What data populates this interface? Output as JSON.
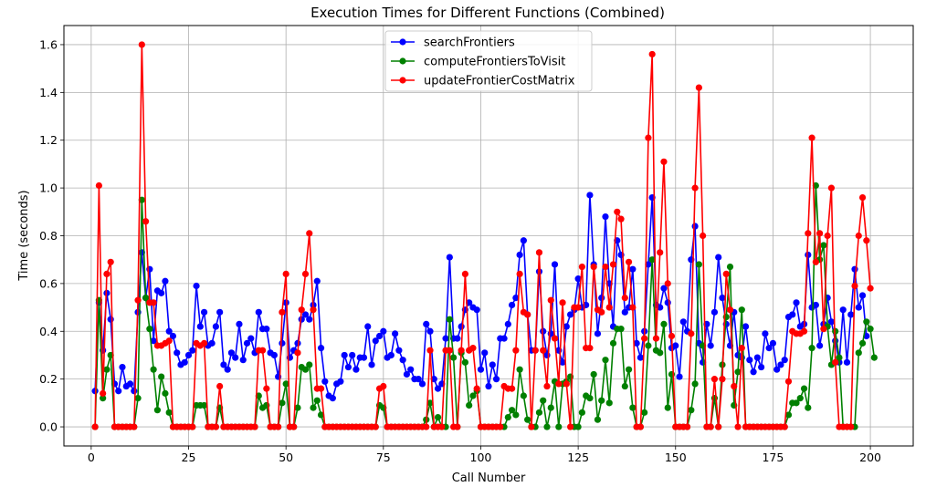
{
  "chart_data": {
    "type": "line",
    "title": "Execution Times for Different Functions (Combined)",
    "xlabel": "Call Number",
    "ylabel": "Time (seconds)",
    "xlim": [
      -7,
      211
    ],
    "ylim": [
      -0.08,
      1.68
    ],
    "xticks": [
      0,
      25,
      50,
      75,
      100,
      125,
      150,
      175,
      200
    ],
    "yticks": [
      0.0,
      0.2,
      0.4,
      0.6,
      0.8,
      1.0,
      1.2,
      1.4,
      1.6
    ],
    "ytick_labels": [
      "0.0",
      "0.2",
      "0.4",
      "0.6",
      "0.8",
      "1.0",
      "1.2",
      "1.4",
      "1.6"
    ],
    "grid": true,
    "legend_position": "top-center",
    "x_start": 1,
    "series": [
      {
        "name": "searchFrontiers",
        "color": "#0000ff",
        "values": [
          0.15,
          0.52,
          0.32,
          0.56,
          0.45,
          0.18,
          0.15,
          0.25,
          0.17,
          0.18,
          0.15,
          0.48,
          0.73,
          0.54,
          0.66,
          0.36,
          0.57,
          0.56,
          0.61,
          0.4,
          0.38,
          0.31,
          0.26,
          0.27,
          0.3,
          0.32,
          0.59,
          0.42,
          0.48,
          0.34,
          0.35,
          0.42,
          0.48,
          0.26,
          0.24,
          0.31,
          0.29,
          0.43,
          0.28,
          0.35,
          0.37,
          0.31,
          0.48,
          0.41,
          0.41,
          0.31,
          0.3,
          0.21,
          0.35,
          0.52,
          0.29,
          0.32,
          0.35,
          0.45,
          0.47,
          0.45,
          0.51,
          0.61,
          0.33,
          0.19,
          0.13,
          0.12,
          0.18,
          0.19,
          0.3,
          0.25,
          0.3,
          0.24,
          0.29,
          0.29,
          0.42,
          0.26,
          0.36,
          0.38,
          0.4,
          0.29,
          0.3,
          0.39,
          0.32,
          0.28,
          0.22,
          0.24,
          0.2,
          0.2,
          0.18,
          0.43,
          0.4,
          0.2,
          0.16,
          0.18,
          0.37,
          0.71,
          0.37,
          0.37,
          0.42,
          0.49,
          0.52,
          0.5,
          0.49,
          0.24,
          0.31,
          0.17,
          0.26,
          0.2,
          0.37,
          0.37,
          0.43,
          0.51,
          0.54,
          0.72,
          0.78,
          0.47,
          0.32,
          0.32,
          0.65,
          0.4,
          0.3,
          0.39,
          0.68,
          0.32,
          0.27,
          0.42,
          0.47,
          0.49,
          0.62,
          0.5,
          0.51,
          0.97,
          0.68,
          0.39,
          0.54,
          0.88,
          0.6,
          0.42,
          0.78,
          0.72,
          0.48,
          0.5,
          0.66,
          0.35,
          0.29,
          0.4,
          0.68,
          0.96,
          0.51,
          0.5,
          0.58,
          0.52,
          0.33,
          0.34,
          0.21,
          0.44,
          0.4,
          0.7,
          0.84,
          0.35,
          0.27,
          0.43,
          0.34,
          0.48,
          0.71,
          0.54,
          0.43,
          0.34,
          0.48,
          0.3,
          0.29,
          0.42,
          0.28,
          0.23,
          0.29,
          0.25,
          0.39,
          0.33,
          0.35,
          0.24,
          0.26,
          0.28,
          0.46,
          0.47,
          0.52,
          0.42,
          0.43,
          0.72,
          0.5,
          0.51,
          0.34,
          0.43,
          0.54,
          0.44,
          0.36,
          0.27,
          0.49,
          0.27,
          0.47,
          0.66,
          0.5,
          0.55,
          0.38
        ]
      },
      {
        "name": "computeFrontiersToVisit",
        "color": "#008000",
        "values": [
          0.0,
          0.53,
          0.12,
          0.24,
          0.3,
          0.0,
          0.0,
          0.0,
          0.0,
          0.0,
          0.0,
          0.12,
          0.95,
          0.54,
          0.41,
          0.24,
          0.07,
          0.21,
          0.14,
          0.06,
          0.0,
          0.0,
          0.0,
          0.0,
          0.0,
          0.0,
          0.09,
          0.09,
          0.09,
          0.0,
          0.0,
          0.0,
          0.08,
          0.0,
          0.0,
          0.0,
          0.0,
          0.0,
          0.0,
          0.0,
          0.0,
          0.0,
          0.13,
          0.08,
          0.09,
          0.0,
          0.0,
          0.0,
          0.1,
          0.18,
          0.0,
          0.0,
          0.08,
          0.25,
          0.24,
          0.26,
          0.08,
          0.11,
          0.05,
          0.0,
          0.0,
          0.0,
          0.0,
          0.0,
          0.0,
          0.0,
          0.0,
          0.0,
          0.0,
          0.0,
          0.0,
          0.0,
          0.0,
          0.09,
          0.08,
          0.0,
          0.0,
          0.0,
          0.0,
          0.0,
          0.0,
          0.0,
          0.0,
          0.0,
          0.0,
          0.03,
          0.1,
          0.0,
          0.04,
          0.0,
          0.0,
          0.45,
          0.29,
          0.0,
          0.31,
          0.27,
          0.09,
          0.13,
          0.15,
          0.0,
          0.0,
          0.0,
          0.0,
          0.0,
          0.0,
          0.0,
          0.04,
          0.07,
          0.05,
          0.24,
          0.13,
          0.03,
          0.0,
          0.0,
          0.06,
          0.11,
          0.0,
          0.08,
          0.19,
          0.0,
          0.18,
          0.19,
          0.21,
          0.0,
          0.0,
          0.06,
          0.13,
          0.12,
          0.22,
          0.03,
          0.11,
          0.28,
          0.1,
          0.35,
          0.41,
          0.41,
          0.17,
          0.24,
          0.08,
          0.0,
          0.0,
          0.06,
          0.34,
          0.7,
          0.32,
          0.31,
          0.43,
          0.08,
          0.22,
          0.0,
          0.0,
          0.0,
          0.0,
          0.07,
          0.18,
          0.68,
          0.34,
          0.0,
          0.0,
          0.12,
          0.0,
          0.26,
          0.46,
          0.67,
          0.09,
          0.23,
          0.49,
          0.0,
          0.0,
          0.0,
          0.0,
          0.0,
          0.0,
          0.0,
          0.0,
          0.0,
          0.0,
          0.0,
          0.05,
          0.1,
          0.1,
          0.12,
          0.16,
          0.08,
          0.33,
          1.01,
          0.7,
          0.76,
          0.42,
          0.26,
          0.4,
          0.29,
          0.0,
          0.0,
          0.0,
          0.0,
          0.31,
          0.35,
          0.44,
          0.41,
          0.29
        ]
      },
      {
        "name": "updateFrontierCostMatrix",
        "color": "#ff0000",
        "values": [
          0.0,
          1.01,
          0.14,
          0.64,
          0.69,
          0.0,
          0.0,
          0.0,
          0.0,
          0.0,
          0.0,
          0.53,
          1.6,
          0.86,
          0.52,
          0.52,
          0.34,
          0.34,
          0.35,
          0.36,
          0.0,
          0.0,
          0.0,
          0.0,
          0.0,
          0.0,
          0.35,
          0.34,
          0.35,
          0.0,
          0.0,
          0.0,
          0.17,
          0.0,
          0.0,
          0.0,
          0.0,
          0.0,
          0.0,
          0.0,
          0.0,
          0.0,
          0.32,
          0.32,
          0.16,
          0.0,
          0.0,
          0.0,
          0.48,
          0.64,
          0.0,
          0.0,
          0.31,
          0.49,
          0.64,
          0.81,
          0.49,
          0.16,
          0.16,
          0.0,
          0.0,
          0.0,
          0.0,
          0.0,
          0.0,
          0.0,
          0.0,
          0.0,
          0.0,
          0.0,
          0.0,
          0.0,
          0.0,
          0.16,
          0.17,
          0.0,
          0.0,
          0.0,
          0.0,
          0.0,
          0.0,
          0.0,
          0.0,
          0.0,
          0.0,
          0.0,
          0.32,
          0.0,
          0.0,
          0.0,
          0.32,
          0.32,
          0.0,
          0.0,
          0.32,
          0.64,
          0.32,
          0.33,
          0.16,
          0.0,
          0.0,
          0.0,
          0.0,
          0.0,
          0.0,
          0.17,
          0.16,
          0.16,
          0.32,
          0.64,
          0.48,
          0.47,
          0.0,
          0.32,
          0.73,
          0.32,
          0.17,
          0.53,
          0.37,
          0.18,
          0.52,
          0.18,
          0.0,
          0.5,
          0.5,
          0.67,
          0.33,
          0.33,
          0.67,
          0.49,
          0.48,
          0.67,
          0.5,
          0.68,
          0.9,
          0.87,
          0.54,
          0.69,
          0.5,
          0.0,
          0.0,
          0.37,
          1.21,
          1.56,
          0.37,
          0.73,
          1.11,
          0.6,
          0.38,
          0.0,
          0.0,
          0.0,
          0.0,
          0.39,
          1.0,
          1.42,
          0.8,
          0.0,
          0.0,
          0.2,
          0.0,
          0.2,
          0.64,
          0.49,
          0.17,
          0.0,
          0.33,
          0.0,
          0.0,
          0.0,
          0.0,
          0.0,
          0.0,
          0.0,
          0.0,
          0.0,
          0.0,
          0.0,
          0.19,
          0.4,
          0.39,
          0.39,
          0.4,
          0.81,
          1.21,
          0.69,
          0.81,
          0.41,
          0.8,
          1.0,
          0.27,
          0.0,
          0.0,
          0.0,
          0.0,
          0.59,
          0.8,
          0.96,
          0.78,
          0.58
        ]
      }
    ]
  }
}
